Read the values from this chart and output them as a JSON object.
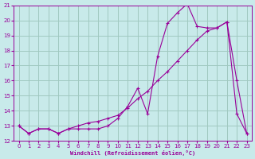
{
  "xlabel": "Windchill (Refroidissement éolien,°C)",
  "xlim": [
    -0.5,
    23.5
  ],
  "ylim": [
    12,
    21
  ],
  "xticks": [
    0,
    1,
    2,
    3,
    4,
    5,
    6,
    7,
    8,
    9,
    10,
    11,
    12,
    13,
    14,
    15,
    16,
    17,
    18,
    19,
    20,
    21,
    22,
    23
  ],
  "yticks": [
    12,
    13,
    14,
    15,
    16,
    17,
    18,
    19,
    20,
    21
  ],
  "background_color": "#c8eaea",
  "grid_color": "#a0c8c0",
  "line_color": "#990099",
  "line1_x": [
    0,
    1,
    2,
    3,
    4,
    5,
    6,
    7,
    8,
    9,
    10,
    11,
    12,
    13,
    14,
    15,
    16,
    17,
    18,
    19,
    20,
    21,
    22,
    23
  ],
  "line1_y": [
    13.0,
    12.5,
    12.8,
    12.8,
    12.5,
    12.8,
    12.8,
    12.8,
    12.8,
    13.0,
    13.5,
    14.3,
    15.5,
    13.8,
    17.6,
    19.8,
    20.5,
    21.1,
    19.6,
    19.5,
    19.5,
    19.9,
    16.0,
    12.5
  ],
  "line2_x": [
    0,
    1,
    2,
    3,
    4,
    5,
    6,
    7,
    8,
    9,
    10,
    11,
    12,
    13,
    14,
    15,
    16,
    17,
    18,
    19,
    20,
    21,
    22,
    23
  ],
  "line2_y": [
    13.0,
    12.5,
    12.8,
    12.8,
    12.5,
    12.8,
    13.0,
    13.2,
    13.3,
    13.5,
    13.7,
    14.2,
    14.8,
    15.3,
    16.0,
    16.6,
    17.3,
    18.0,
    18.7,
    19.3,
    19.5,
    19.9,
    13.8,
    12.5
  ]
}
